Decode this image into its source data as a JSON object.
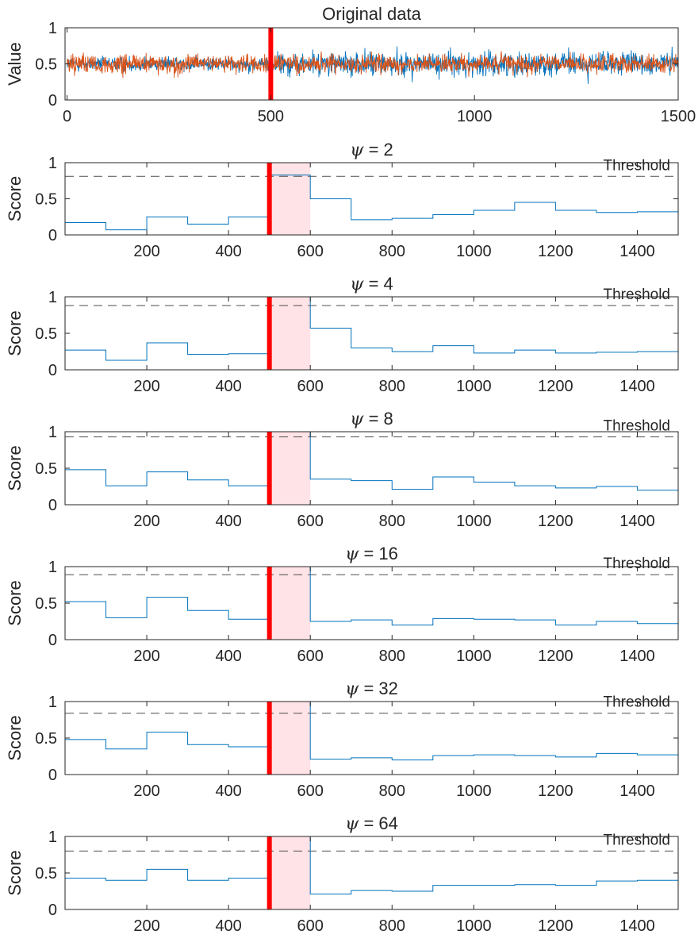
{
  "chart_data": [
    {
      "type": "line",
      "title": "Original data",
      "ylabel": "Value",
      "xlabel": "",
      "xlim": [
        -5,
        1500
      ],
      "ylim": [
        0,
        1
      ],
      "xticks": [
        0,
        500,
        1000,
        1500
      ],
      "xtick_labels": [
        "0",
        "500",
        "1000",
        "1500"
      ],
      "yticks": [
        0,
        0.5,
        1
      ],
      "ytick_labels": [
        "0",
        "0.5",
        "1"
      ],
      "change_point": 500,
      "series": [
        {
          "name": "series A (blue)",
          "color": "#0072BD",
          "description": "noisy signal 0-1500, mean ~0.5, larger variance after 500"
        },
        {
          "name": "series B (orange)",
          "color": "#D95319",
          "description": "noisy signal 0-1500, mean ~0.5"
        }
      ]
    },
    {
      "type": "line",
      "title_prefix": "ψ",
      "title_value": "= 2",
      "ylabel": "Score",
      "xlim": [
        0,
        1500
      ],
      "ylim": [
        0,
        1
      ],
      "xticks": [
        200,
        400,
        600,
        800,
        1000,
        1200,
        1400
      ],
      "xtick_labels": [
        "200",
        "400",
        "600",
        "800",
        "1000",
        "1200",
        "1400"
      ],
      "yticks": [
        0,
        0.5,
        1
      ],
      "ytick_labels": [
        "0",
        "0.5",
        "1"
      ],
      "threshold": 0.81,
      "threshold_label": "Threshold",
      "change_point": 500,
      "highlight": [
        500,
        600
      ],
      "step_x": [
        0,
        100,
        200,
        300,
        400,
        500,
        600,
        700,
        800,
        900,
        1000,
        1100,
        1200,
        1300,
        1400,
        1500
      ],
      "values": [
        0.17,
        0.07,
        0.25,
        0.15,
        0.25,
        0.83,
        0.5,
        0.21,
        0.23,
        0.28,
        0.34,
        0.45,
        0.34,
        0.31,
        0.32
      ]
    },
    {
      "type": "line",
      "title_prefix": "ψ",
      "title_value": "= 4",
      "ylabel": "Score",
      "xlim": [
        0,
        1500
      ],
      "ylim": [
        0,
        1
      ],
      "xticks": [
        200,
        400,
        600,
        800,
        1000,
        1200,
        1400
      ],
      "xtick_labels": [
        "200",
        "400",
        "600",
        "800",
        "1000",
        "1200",
        "1400"
      ],
      "yticks": [
        0,
        0.5,
        1
      ],
      "ytick_labels": [
        "0",
        "0.5",
        "1"
      ],
      "threshold": 0.88,
      "threshold_label": "Threshold",
      "change_point": 500,
      "highlight": [
        500,
        600
      ],
      "step_x": [
        0,
        100,
        200,
        300,
        400,
        500,
        600,
        700,
        800,
        900,
        1000,
        1100,
        1200,
        1300,
        1400,
        1500
      ],
      "values": [
        0.27,
        0.13,
        0.37,
        0.21,
        0.22,
        1.0,
        0.57,
        0.3,
        0.25,
        0.33,
        0.23,
        0.27,
        0.23,
        0.24,
        0.25
      ]
    },
    {
      "type": "line",
      "title_prefix": "ψ",
      "title_value": "= 8",
      "ylabel": "Score",
      "xlim": [
        0,
        1500
      ],
      "ylim": [
        0,
        1
      ],
      "xticks": [
        200,
        400,
        600,
        800,
        1000,
        1200,
        1400
      ],
      "xtick_labels": [
        "200",
        "400",
        "600",
        "800",
        "1000",
        "1200",
        "1400"
      ],
      "yticks": [
        0,
        0.5,
        1
      ],
      "ytick_labels": [
        "0",
        "0.5",
        "1"
      ],
      "threshold": 0.93,
      "threshold_label": "Threshold",
      "change_point": 500,
      "highlight": [
        500,
        600
      ],
      "step_x": [
        0,
        100,
        200,
        300,
        400,
        500,
        600,
        700,
        800,
        900,
        1000,
        1100,
        1200,
        1300,
        1400,
        1500
      ],
      "values": [
        0.48,
        0.26,
        0.45,
        0.34,
        0.26,
        1.0,
        0.35,
        0.33,
        0.21,
        0.38,
        0.31,
        0.26,
        0.23,
        0.25,
        0.2
      ]
    },
    {
      "type": "line",
      "title_prefix": "ψ",
      "title_value": "= 16",
      "ylabel": "Score",
      "xlim": [
        0,
        1500
      ],
      "ylim": [
        0,
        1
      ],
      "xticks": [
        200,
        400,
        600,
        800,
        1000,
        1200,
        1400
      ],
      "xtick_labels": [
        "200",
        "400",
        "600",
        "800",
        "1000",
        "1200",
        "1400"
      ],
      "yticks": [
        0,
        0.5,
        1
      ],
      "ytick_labels": [
        "0",
        "0.5",
        "1"
      ],
      "threshold": 0.89,
      "threshold_label": "Threshold",
      "change_point": 500,
      "highlight": [
        500,
        600
      ],
      "step_x": [
        0,
        100,
        200,
        300,
        400,
        500,
        600,
        700,
        800,
        900,
        1000,
        1100,
        1200,
        1300,
        1400,
        1500
      ],
      "values": [
        0.52,
        0.3,
        0.58,
        0.4,
        0.28,
        1.0,
        0.25,
        0.27,
        0.2,
        0.29,
        0.28,
        0.27,
        0.2,
        0.25,
        0.22
      ]
    },
    {
      "type": "line",
      "title_prefix": "ψ",
      "title_value": "= 32",
      "ylabel": "Score",
      "xlim": [
        0,
        1500
      ],
      "ylim": [
        0,
        1
      ],
      "xticks": [
        200,
        400,
        600,
        800,
        1000,
        1200,
        1400
      ],
      "xtick_labels": [
        "200",
        "400",
        "600",
        "800",
        "1000",
        "1200",
        "1400"
      ],
      "yticks": [
        0,
        0.5,
        1
      ],
      "ytick_labels": [
        "0",
        "0.5",
        "1"
      ],
      "threshold": 0.84,
      "threshold_label": "Threshold",
      "change_point": 500,
      "highlight": [
        500,
        600
      ],
      "step_x": [
        0,
        100,
        200,
        300,
        400,
        500,
        600,
        700,
        800,
        900,
        1000,
        1100,
        1200,
        1300,
        1400,
        1500
      ],
      "values": [
        0.48,
        0.35,
        0.58,
        0.41,
        0.38,
        1.0,
        0.21,
        0.23,
        0.2,
        0.26,
        0.27,
        0.26,
        0.24,
        0.29,
        0.27
      ]
    },
    {
      "type": "line",
      "title_prefix": "ψ",
      "title_value": "= 64",
      "ylabel": "Score",
      "xlim": [
        0,
        1500
      ],
      "ylim": [
        0,
        1
      ],
      "xticks": [
        200,
        400,
        600,
        800,
        1000,
        1200,
        1400
      ],
      "xtick_labels": [
        "200",
        "400",
        "600",
        "800",
        "1000",
        "1200",
        "1400"
      ],
      "yticks": [
        0,
        0.5,
        1
      ],
      "ytick_labels": [
        "0",
        "0.5",
        "1"
      ],
      "threshold": 0.8,
      "threshold_label": "Threshold",
      "change_point": 500,
      "highlight": [
        500,
        600
      ],
      "step_x": [
        0,
        100,
        200,
        300,
        400,
        500,
        600,
        700,
        800,
        900,
        1000,
        1100,
        1200,
        1300,
        1400,
        1500
      ],
      "values": [
        0.43,
        0.4,
        0.55,
        0.4,
        0.43,
        1.0,
        0.21,
        0.26,
        0.25,
        0.33,
        0.33,
        0.34,
        0.33,
        0.39,
        0.4
      ]
    }
  ]
}
